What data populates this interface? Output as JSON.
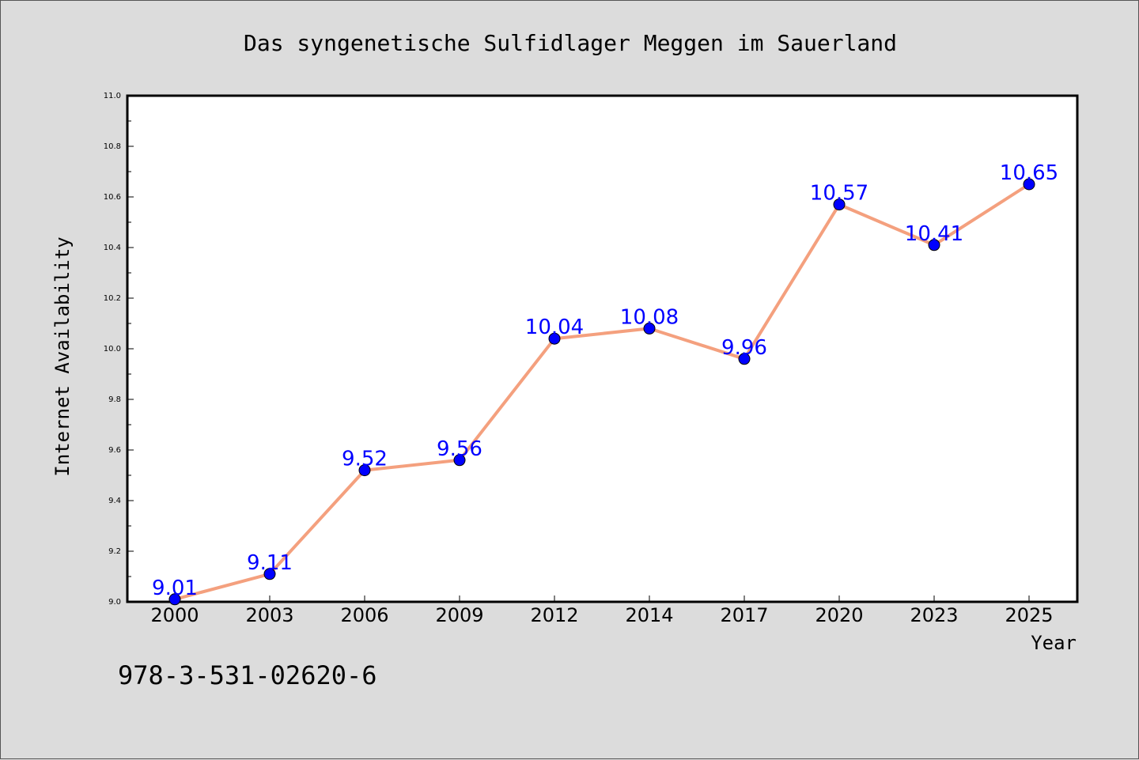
{
  "chart_data": {
    "type": "line",
    "title": "Das syngenetische Sulfidlager Meggen im Sauerland",
    "xlabel": "Year",
    "ylabel": "Internet Availability",
    "categories": [
      "2000",
      "2003",
      "2006",
      "2009",
      "2012",
      "2014",
      "2017",
      "2020",
      "2023",
      "2025"
    ],
    "series": [
      {
        "values": [
          9.01,
          9.11,
          9.52,
          9.56,
          10.04,
          10.08,
          9.96,
          10.57,
          10.41,
          10.65
        ],
        "data_labels": [
          "9.01",
          "9.11",
          "9.52",
          "9.56",
          "10.04",
          "10.08",
          "9.96",
          "10.57",
          "10.41",
          "10.65"
        ],
        "line_color": "#f4a07e",
        "marker_color": "#0000ff",
        "label_color": "#0000ff"
      }
    ],
    "ylim": [
      9.0,
      11.0
    ],
    "yticks": [
      "9.0",
      "9.2",
      "9.4",
      "9.6",
      "9.8",
      "10.0",
      "10.2",
      "10.4",
      "10.6",
      "10.8",
      "11.0"
    ],
    "grid": false,
    "legend": "none"
  },
  "footer": {
    "isbn": "978-3-531-02620-6"
  },
  "colors": {
    "background": "#dcdcdc",
    "plot_area": "#ffffff",
    "text": "#000000"
  }
}
